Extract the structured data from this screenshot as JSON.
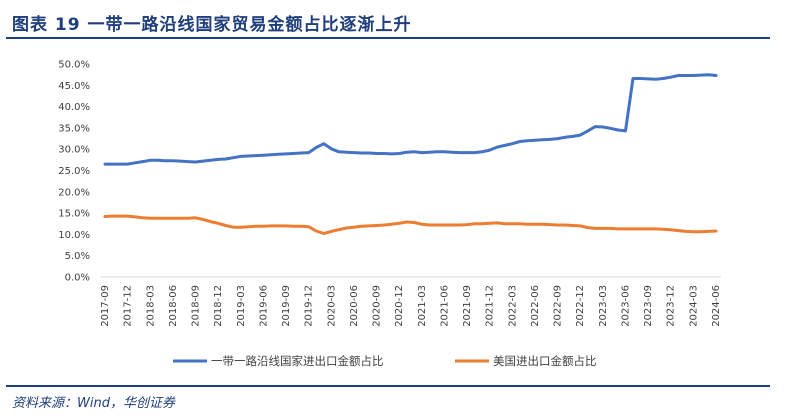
{
  "title": "图表 19    一带一路沿线国家贸易金额占比逐渐上升",
  "source": "资料来源：Wind，华创证券",
  "colors": {
    "series1": "#4472c4",
    "series2": "#ed7d31",
    "accent": "#1f3e7c",
    "axis": "#d9d9d9"
  },
  "chart_data": {
    "type": "line",
    "title": "",
    "xlabel": "",
    "ylabel": "",
    "ylim": [
      0,
      50
    ],
    "yticks": [
      "0.0%",
      "5.0%",
      "10.0%",
      "15.0%",
      "20.0%",
      "25.0%",
      "30.0%",
      "35.0%",
      "40.0%",
      "45.0%",
      "50.0%"
    ],
    "grid": false,
    "legend": "bottom",
    "x": [
      "2017-09",
      "2017-10",
      "2017-11",
      "2017-12",
      "2018-01",
      "2018-02",
      "2018-03",
      "2018-04",
      "2018-05",
      "2018-06",
      "2018-07",
      "2018-08",
      "2018-09",
      "2018-10",
      "2018-11",
      "2018-12",
      "2019-01",
      "2019-02",
      "2019-03",
      "2019-04",
      "2019-05",
      "2019-06",
      "2019-07",
      "2019-08",
      "2019-09",
      "2019-10",
      "2019-11",
      "2019-12",
      "2020-01",
      "2020-02",
      "2020-03",
      "2020-04",
      "2020-05",
      "2020-06",
      "2020-07",
      "2020-08",
      "2020-09",
      "2020-10",
      "2020-11",
      "2020-12",
      "2021-01",
      "2021-02",
      "2021-03",
      "2021-04",
      "2021-05",
      "2021-06",
      "2021-07",
      "2021-08",
      "2021-09",
      "2021-10",
      "2021-11",
      "2021-12",
      "2022-01",
      "2022-02",
      "2022-03",
      "2022-04",
      "2022-05",
      "2022-06",
      "2022-07",
      "2022-08",
      "2022-09",
      "2022-10",
      "2022-11",
      "2022-12",
      "2023-01",
      "2023-02",
      "2023-03",
      "2023-04",
      "2023-05",
      "2023-06",
      "2023-07",
      "2023-08",
      "2023-09",
      "2023-10",
      "2023-11",
      "2023-12",
      "2024-01",
      "2024-02",
      "2024-03",
      "2024-04",
      "2024-05",
      "2024-06"
    ],
    "xticks": [
      "2017-09",
      "2017-12",
      "2018-03",
      "2018-06",
      "2018-09",
      "2018-12",
      "2019-03",
      "2019-06",
      "2019-09",
      "2019-12",
      "2020-03",
      "2020-06",
      "2020-09",
      "2020-12",
      "2021-03",
      "2021-06",
      "2021-09",
      "2021-12",
      "2022-03",
      "2022-06",
      "2022-09",
      "2022-12",
      "2023-03",
      "2023-06",
      "2023-09",
      "2023-12",
      "2024-03",
      "2024-06"
    ],
    "series": [
      {
        "name": "一带一路沿线国家进出口金额占比",
        "values": [
          26.5,
          26.5,
          26.5,
          26.5,
          26.8,
          27.1,
          27.4,
          27.4,
          27.3,
          27.3,
          27.2,
          27.1,
          27.0,
          27.2,
          27.4,
          27.6,
          27.7,
          28.0,
          28.3,
          28.4,
          28.5,
          28.6,
          28.7,
          28.8,
          28.9,
          29.0,
          29.1,
          29.2,
          30.4,
          31.3,
          30.1,
          29.4,
          29.3,
          29.2,
          29.1,
          29.1,
          29.0,
          29.0,
          28.9,
          29.0,
          29.3,
          29.4,
          29.2,
          29.3,
          29.4,
          29.4,
          29.3,
          29.2,
          29.2,
          29.2,
          29.4,
          29.8,
          30.5,
          30.9,
          31.3,
          31.8,
          32.0,
          32.1,
          32.2,
          32.3,
          32.5,
          32.8,
          33.0,
          33.3,
          34.3,
          35.3,
          35.2,
          34.9,
          34.5,
          34.3,
          46.6,
          46.6,
          46.5,
          46.4,
          46.6,
          46.9,
          47.3,
          47.3,
          47.3,
          47.4,
          47.5,
          47.3
        ]
      },
      {
        "name": "美国进出口金额占比",
        "values": [
          14.2,
          14.3,
          14.3,
          14.3,
          14.1,
          13.9,
          13.8,
          13.8,
          13.8,
          13.8,
          13.8,
          13.8,
          13.9,
          13.5,
          13.0,
          12.6,
          12.1,
          11.7,
          11.7,
          11.8,
          11.9,
          11.9,
          12.0,
          12.0,
          12.0,
          11.9,
          11.9,
          11.8,
          10.8,
          10.2,
          10.7,
          11.1,
          11.5,
          11.7,
          11.9,
          12.0,
          12.1,
          12.2,
          12.4,
          12.6,
          12.9,
          12.8,
          12.4,
          12.2,
          12.2,
          12.2,
          12.2,
          12.2,
          12.3,
          12.5,
          12.5,
          12.6,
          12.7,
          12.5,
          12.5,
          12.5,
          12.4,
          12.4,
          12.4,
          12.3,
          12.2,
          12.2,
          12.1,
          12.0,
          11.6,
          11.4,
          11.4,
          11.4,
          11.3,
          11.3,
          11.3,
          11.3,
          11.3,
          11.3,
          11.2,
          11.1,
          10.9,
          10.7,
          10.6,
          10.6,
          10.7,
          10.8
        ]
      }
    ]
  }
}
